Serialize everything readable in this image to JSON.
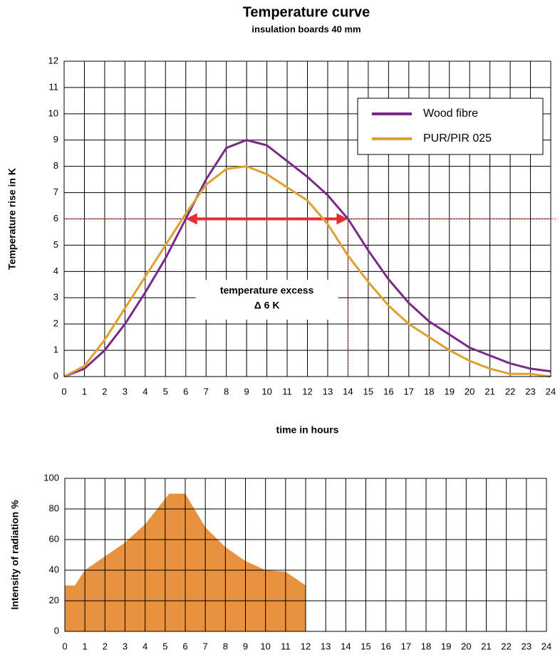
{
  "chart_data": [
    {
      "type": "line",
      "title": "Temperature curve",
      "subtitle": "insulation boards 40 mm",
      "x_label": "time in hours",
      "y_label": "Temperature rise in K",
      "x": [
        0,
        1,
        2,
        3,
        4,
        5,
        6,
        7,
        8,
        9,
        10,
        11,
        12,
        13,
        14,
        15,
        16,
        17,
        18,
        19,
        20,
        21,
        22,
        23,
        24
      ],
      "series": [
        {
          "name": "Wood fibre",
          "color": "#7b2a8a",
          "values": [
            0,
            0.3,
            1.0,
            2.0,
            3.2,
            4.5,
            6.0,
            7.5,
            8.7,
            9.0,
            8.8,
            8.2,
            7.6,
            6.9,
            6.0,
            4.8,
            3.7,
            2.8,
            2.1,
            1.6,
            1.1,
            0.8,
            0.5,
            0.3,
            0.2
          ]
        },
        {
          "name": "PUR/PIR 025",
          "color": "#e0a030",
          "values": [
            0,
            0.4,
            1.4,
            2.6,
            3.8,
            5.0,
            6.2,
            7.3,
            7.9,
            8.0,
            7.7,
            7.2,
            6.7,
            5.8,
            4.6,
            3.6,
            2.7,
            2.0,
            1.5,
            1.0,
            0.6,
            0.3,
            0.1,
            0.1,
            0
          ]
        }
      ],
      "xlim": [
        0,
        24
      ],
      "ylim": [
        0,
        12
      ],
      "xticks": [
        0,
        1,
        2,
        3,
        4,
        5,
        6,
        7,
        8,
        9,
        10,
        11,
        12,
        13,
        14,
        15,
        16,
        17,
        18,
        19,
        20,
        21,
        22,
        23,
        24
      ],
      "yticks": [
        0,
        1,
        2,
        3,
        4,
        5,
        6,
        7,
        8,
        9,
        10,
        11,
        12
      ],
      "grid": true,
      "legend": "upper right",
      "reference_line": 6,
      "reference_color": "#e03030",
      "excess_range": [
        6,
        14
      ],
      "annotation": [
        "temperature excess",
        "Δ 6 K"
      ]
    },
    {
      "type": "area",
      "y_label": "Intensity of radiation %",
      "x": [
        0,
        0.5,
        1,
        2,
        3,
        4,
        5.2,
        6,
        7,
        8,
        9,
        10,
        11,
        12
      ],
      "values": [
        30,
        30,
        40,
        49,
        58,
        70,
        90,
        90,
        68,
        55,
        46,
        40,
        39,
        30
      ],
      "color": "#e8913e",
      "xlim": [
        0,
        24
      ],
      "ylim": [
        0,
        100
      ],
      "xticks": [
        0,
        1,
        2,
        3,
        4,
        5,
        6,
        7,
        8,
        9,
        10,
        11,
        12,
        13,
        14,
        15,
        16,
        17,
        18,
        19,
        20,
        21,
        22,
        23,
        24
      ],
      "yticks": [
        0,
        20,
        40,
        60,
        80,
        100
      ],
      "grid": true
    }
  ]
}
